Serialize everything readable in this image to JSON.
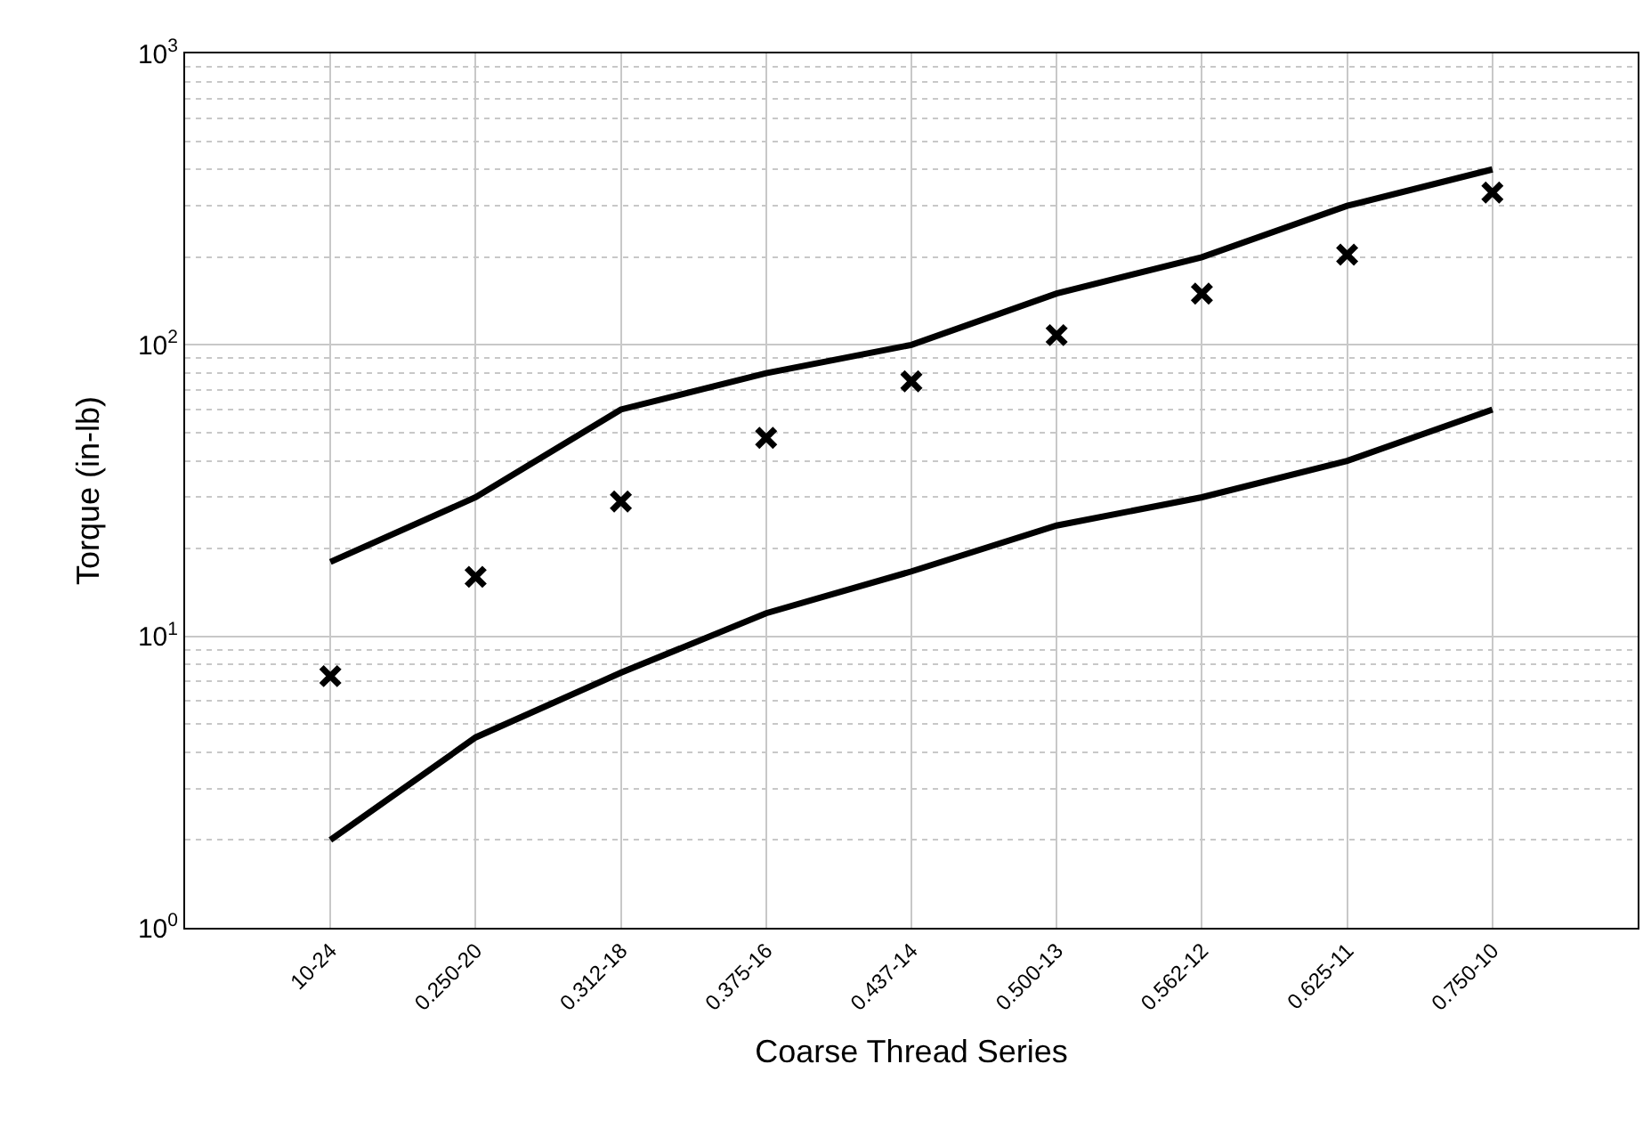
{
  "chart_data": {
    "type": "line",
    "xlabel": "Coarse Thread Series",
    "ylabel": "Torque (in-lb)",
    "categories": [
      "10-24",
      "0.250-20",
      "0.312-18",
      "0.375-16",
      "0.437-14",
      "0.500-13",
      "0.562-12",
      "0.625-11",
      "0.750-10"
    ],
    "series": [
      {
        "color": "#000000",
        "values": [
          18,
          30,
          60,
          80,
          100,
          150,
          200,
          300,
          400
        ]
      },
      {
        "color": "#000000",
        "values": [
          2,
          4.5,
          7.5,
          12,
          16.7,
          24,
          30,
          40,
          60
        ]
      },
      {
        "type": "scatter",
        "color": "#000000",
        "marker": "cross",
        "values": [
          7.3,
          16,
          29,
          48,
          75,
          108,
          150,
          204,
          333
        ]
      }
    ],
    "log": "y",
    "ylim": [
      1,
      1000
    ],
    "yticks": [
      {
        "value": 1,
        "label": "10$^{0}$"
      },
      {
        "value": 10,
        "label": "10$^{1}$"
      },
      {
        "value": 100,
        "label": "10$^{2}$"
      },
      {
        "value": 1000,
        "label": "10$^{3}$"
      }
    ],
    "grid": true,
    "line_style": "solid"
  }
}
